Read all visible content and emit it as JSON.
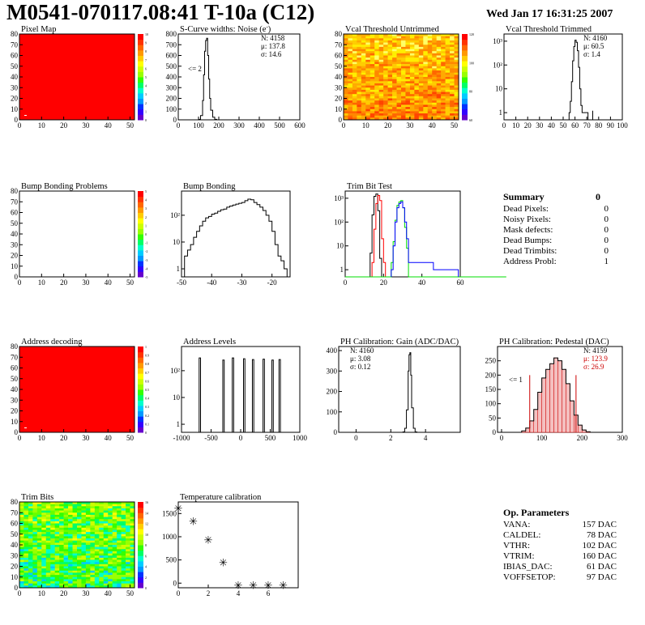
{
  "page": {
    "title": "M0541-070117.08:41 T-10a (C12)",
    "date": "Wed Jan 17 16:31:25 2007"
  },
  "summary": {
    "header": "Summary",
    "total": "0",
    "rows": [
      {
        "label": "Dead Pixels:",
        "value": "0"
      },
      {
        "label": "Noisy Pixels:",
        "value": "0"
      },
      {
        "label": "Mask defects:",
        "value": "0"
      },
      {
        "label": "Dead Bumps:",
        "value": "0"
      },
      {
        "label": "Dead Trimbits:",
        "value": "0"
      },
      {
        "label": "Address Probl:",
        "value": "1"
      }
    ]
  },
  "op_params": {
    "header": "Op. Parameters",
    "rows": [
      {
        "label": "VANA:",
        "value": "157 DAC"
      },
      {
        "label": "CALDEL:",
        "value": "78 DAC"
      },
      {
        "label": "VTHR:",
        "value": "102 DAC"
      },
      {
        "label": "VTRIM:",
        "value": "160 DAC"
      },
      {
        "label": "IBIAS_DAC:",
        "value": "61 DAC"
      },
      {
        "label": "VOFFSETOP:",
        "value": "97 DAC"
      }
    ]
  },
  "colors": {
    "red": "#ff0000",
    "green": "#00dd00",
    "blue": "#0000ff",
    "pedestal_fill": "#cc0000"
  },
  "chart_data": [
    {
      "name": "pixel-map",
      "type": "heatmap",
      "title": "Pixel Map",
      "xlim": [
        0,
        52
      ],
      "ylim": [
        0,
        80
      ],
      "xticks": [
        "0",
        "10",
        "20",
        "30",
        "40",
        "50"
      ],
      "yticks": [
        "0",
        "10",
        "20",
        "30",
        "40",
        "50",
        "60",
        "70",
        "80"
      ],
      "fill": "uniform-red",
      "zscale": [
        "0",
        "1",
        "2",
        "3",
        "4",
        "5",
        "6",
        "7",
        "8",
        "9",
        "10"
      ]
    },
    {
      "name": "scurve-widths",
      "type": "bar",
      "title": "S-Curve widths: Noise (e",
      "title_sup": "-",
      "title_end": ")",
      "xlim": [
        0,
        600
      ],
      "ylim": [
        0,
        800
      ],
      "xticks": [
        "0",
        "100",
        "200",
        "300",
        "400",
        "500",
        "600"
      ],
      "yticks": [
        "0",
        "100",
        "200",
        "300",
        "400",
        "500",
        "600",
        "700",
        "800"
      ],
      "stats": [
        {
          "label": "N:",
          "value": "4158"
        },
        {
          "label": "μ:",
          "value": "137.8"
        },
        {
          "label": "σ:",
          "value": "14.6"
        }
      ],
      "annotation": "<= 2",
      "x": [
        90,
        100,
        110,
        120,
        125,
        130,
        135,
        140,
        145,
        150,
        155,
        160,
        170,
        180,
        190
      ],
      "values": [
        0,
        5,
        40,
        180,
        420,
        640,
        740,
        760,
        600,
        380,
        200,
        90,
        25,
        5,
        0
      ]
    },
    {
      "name": "vcal-untrimmed",
      "type": "heatmap",
      "title": "Vcal Threshold Untrimmed",
      "xlim": [
        0,
        52
      ],
      "ylim": [
        0,
        80
      ],
      "xticks": [
        "0",
        "10",
        "20",
        "30",
        "40",
        "50"
      ],
      "yticks": [
        "0",
        "10",
        "20",
        "30",
        "40",
        "50",
        "60",
        "70",
        "80"
      ],
      "zscale": [
        "60",
        "80",
        "100",
        "120"
      ]
    },
    {
      "name": "vcal-trimmed",
      "type": "bar",
      "title": "Vcal Threshold Trimmed",
      "log_y": true,
      "xlim": [
        0,
        100
      ],
      "ylim": [
        0.5,
        2000
      ],
      "xticks": [
        "0",
        "10",
        "20",
        "30",
        "40",
        "50",
        "60",
        "70",
        "80",
        "90",
        "100"
      ],
      "yticks": [
        "1",
        "10",
        "10²",
        "10³"
      ],
      "stats": [
        {
          "label": "N:",
          "value": "4160"
        },
        {
          "label": "μ:",
          "value": "60.5"
        },
        {
          "label": "σ:",
          "value": "1.4"
        }
      ],
      "x": [
        55,
        56,
        57,
        58,
        59,
        60,
        61,
        62,
        63,
        64,
        65,
        66,
        70
      ],
      "values": [
        1,
        3,
        20,
        150,
        600,
        1100,
        900,
        400,
        80,
        10,
        2,
        1,
        1
      ]
    },
    {
      "name": "bump-bonding-problems",
      "type": "heatmap",
      "title": "Bump Bonding Problems",
      "xlim": [
        0,
        52
      ],
      "ylim": [
        0,
        80
      ],
      "xticks": [
        "0",
        "10",
        "20",
        "30",
        "40",
        "50"
      ],
      "yticks": [
        "0",
        "10",
        "20",
        "30",
        "40",
        "50",
        "60",
        "70",
        "80"
      ],
      "fill": "empty",
      "zscale": [
        "-5",
        "-4",
        "-3",
        "-2",
        "-1",
        "0",
        "1",
        "2",
        "3",
        "4",
        "5"
      ]
    },
    {
      "name": "bump-bonding",
      "type": "bar",
      "title": "Bump Bonding",
      "log_y": true,
      "xlim": [
        -50,
        -14
      ],
      "ylim": [
        0.5,
        800
      ],
      "xticks": [
        "-50",
        "-40",
        "-30",
        "-20"
      ],
      "yticks": [
        "1",
        "10",
        "10²"
      ],
      "x": [
        -49,
        -48,
        -47,
        -46,
        -45,
        -44,
        -43,
        -42,
        -41,
        -40,
        -39,
        -38,
        -37,
        -36,
        -35,
        -34,
        -33,
        -32,
        -31,
        -30,
        -29,
        -28,
        -27,
        -26,
        -25,
        -24,
        -23,
        -22,
        -21,
        -20,
        -19,
        -18,
        -17,
        -16
      ],
      "values": [
        3,
        5,
        8,
        15,
        25,
        40,
        60,
        80,
        90,
        110,
        120,
        140,
        160,
        170,
        200,
        220,
        240,
        260,
        280,
        300,
        350,
        400,
        380,
        300,
        250,
        200,
        150,
        100,
        60,
        25,
        8,
        3,
        2,
        1
      ]
    },
    {
      "name": "trim-bit-test",
      "type": "line",
      "title": "Trim Bit Test",
      "log_y": true,
      "xlim": [
        0,
        60
      ],
      "ylim": [
        0.5,
        2000
      ],
      "xticks": [
        "0",
        "20",
        "40",
        "60"
      ],
      "yticks": [
        "1",
        "10",
        "10²",
        "10³"
      ],
      "series": [
        {
          "color": "black",
          "x": [
            13,
            14,
            15,
            16,
            17,
            18
          ],
          "values": [
            5,
            200,
            1200,
            1500,
            300,
            3
          ]
        },
        {
          "color": "red",
          "x": [
            14,
            15,
            16,
            17,
            18,
            19,
            20
          ],
          "values": [
            2,
            50,
            600,
            1300,
            800,
            20,
            2
          ]
        },
        {
          "color": "green",
          "x": [
            0,
            24,
            25,
            26,
            27,
            28,
            29,
            30,
            31,
            32,
            33,
            60
          ],
          "values": [
            0.5,
            2,
            15,
            120,
            500,
            700,
            800,
            400,
            60,
            8,
            0.5,
            0.5
          ]
        },
        {
          "color": "blue",
          "x": [
            24,
            25,
            26,
            27,
            28,
            29,
            30,
            31,
            32,
            33,
            46,
            58
          ],
          "values": [
            1,
            10,
            100,
            400,
            600,
            700,
            400,
            100,
            20,
            2,
            1,
            1
          ]
        }
      ]
    },
    {
      "name": "address-decoding",
      "type": "heatmap",
      "title": "Address decoding",
      "xlim": [
        0,
        52
      ],
      "ylim": [
        0,
        80
      ],
      "xticks": [
        "0",
        "10",
        "20",
        "30",
        "40",
        "50"
      ],
      "yticks": [
        "0",
        "10",
        "20",
        "30",
        "40",
        "50",
        "60",
        "70",
        "80"
      ],
      "fill": "uniform-red",
      "zscale": [
        "0",
        "0.1",
        "0.2",
        "0.3",
        "0.4",
        "0.5",
        "0.6",
        "0.7",
        "0.8",
        "0.9",
        "1"
      ]
    },
    {
      "name": "address-levels",
      "type": "bar",
      "title": "Address Levels",
      "log_y": true,
      "xlim": [
        -1000,
        1000
      ],
      "ylim": [
        0.5,
        800
      ],
      "xticks": [
        "-1000",
        "-500",
        "0",
        "500",
        "1000"
      ],
      "yticks": [
        "1",
        "10",
        "10²"
      ],
      "peaks": [
        -690,
        -290,
        -130,
        60,
        210,
        390,
        540,
        660
      ],
      "peak_heights": [
        300,
        250,
        300,
        280,
        260,
        270,
        250,
        260
      ]
    },
    {
      "name": "ph-gain",
      "type": "bar",
      "title": "PH Calibration: Gain (ADC/DAC)",
      "xlim": [
        -1,
        6
      ],
      "ylim": [
        0,
        420
      ],
      "xticks": [
        "0",
        "2",
        "4"
      ],
      "yticks": [
        "0",
        "100",
        "200",
        "300",
        "400"
      ],
      "stats": [
        {
          "label": "N:",
          "value": "4160"
        },
        {
          "label": "μ:",
          "value": "3.08"
        },
        {
          "label": "σ:",
          "value": "0.12"
        }
      ],
      "x": [
        2.7,
        2.8,
        2.9,
        3.0,
        3.05,
        3.1,
        3.15,
        3.2,
        3.3,
        3.4
      ],
      "values": [
        2,
        20,
        110,
        300,
        380,
        390,
        280,
        120,
        20,
        2
      ]
    },
    {
      "name": "ph-pedestal",
      "type": "bar",
      "title": "PH Calibration: Pedestal (DAC)",
      "xlim": [
        -10,
        300
      ],
      "ylim": [
        0,
        300
      ],
      "xticks": [
        "0",
        "100",
        "200",
        "300"
      ],
      "yticks": [
        "0",
        "50",
        "100",
        "150",
        "200",
        "250"
      ],
      "stats": [
        {
          "label": "N:",
          "value": "4159"
        },
        {
          "label": "μ:",
          "value": "123.9"
        },
        {
          "label": "σ:",
          "value": "26.9"
        }
      ],
      "annotation": "<= 1",
      "x": [
        50,
        60,
        70,
        80,
        90,
        100,
        110,
        120,
        130,
        140,
        150,
        160,
        170,
        180,
        190,
        200,
        210
      ],
      "values": [
        5,
        15,
        40,
        80,
        140,
        190,
        220,
        240,
        260,
        250,
        220,
        170,
        110,
        60,
        25,
        8,
        2
      ],
      "markers": [
        70,
        185
      ]
    },
    {
      "name": "trim-bits",
      "type": "heatmap",
      "title": "Trim Bits",
      "xlim": [
        0,
        52
      ],
      "ylim": [
        0,
        80
      ],
      "xticks": [
        "0",
        "10",
        "20",
        "30",
        "40",
        "50"
      ],
      "yticks": [
        "0",
        "10",
        "20",
        "30",
        "40",
        "50",
        "60",
        "70",
        "80"
      ],
      "zscale": [
        "0",
        "2",
        "4",
        "6",
        "8",
        "10",
        "12",
        "14",
        "16"
      ]
    },
    {
      "name": "temperature-calibration",
      "type": "scatter",
      "title": "Temperature calibration",
      "xlim": [
        0,
        8
      ],
      "ylim": [
        -100,
        1750
      ],
      "xticks": [
        "0",
        "2",
        "4",
        "6"
      ],
      "yticks": [
        "0",
        "500",
        "1000",
        "1500"
      ],
      "x": [
        0,
        1,
        2,
        3,
        4,
        5,
        6,
        7
      ],
      "values": [
        1620,
        1340,
        940,
        450,
        -40,
        -40,
        -40,
        -40
      ]
    }
  ]
}
